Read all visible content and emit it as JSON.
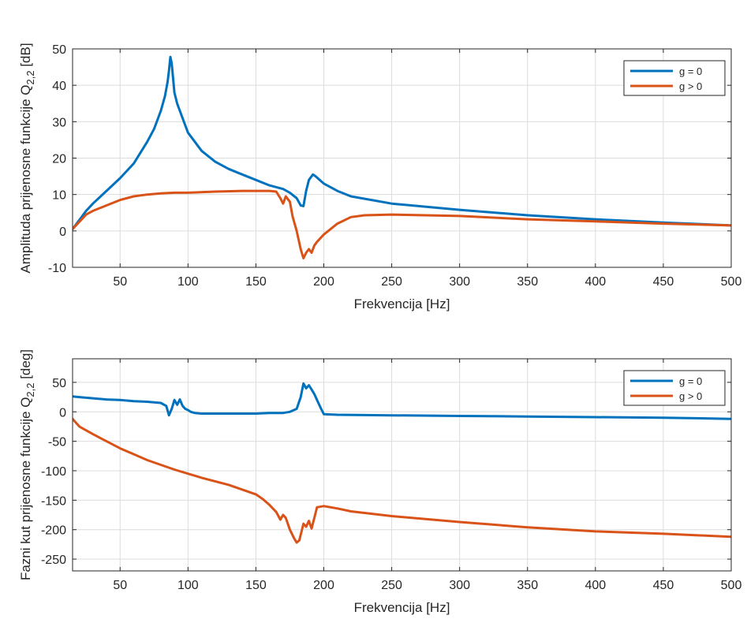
{
  "colors": {
    "g0": "#0072BD",
    "g1": "#D95319",
    "grid": "#dcdcdc",
    "axis": "#262626",
    "background": "#ffffff"
  },
  "chart_data": [
    {
      "type": "line",
      "title": "",
      "xlabel": "Frekvencija [Hz]",
      "ylabel": {
        "prefix": "Amplituda prijenosne funkcije Q",
        "sub": "2,2",
        "suffix": " [dB]"
      },
      "xlim": [
        15,
        500
      ],
      "ylim": [
        -10,
        50
      ],
      "xticks": [
        50,
        100,
        150,
        200,
        250,
        300,
        350,
        400,
        450,
        500
      ],
      "yticks": [
        -10,
        0,
        10,
        20,
        30,
        40,
        50
      ],
      "grid": true,
      "legend": {
        "position": "top-right",
        "entries": [
          "g = 0",
          "g > 0"
        ]
      },
      "series": [
        {
          "name": "g = 0",
          "color_key": "g0",
          "x": [
            15,
            20,
            25,
            30,
            40,
            50,
            60,
            65,
            70,
            75,
            80,
            83,
            85,
            86,
            87,
            88,
            89,
            90,
            92,
            95,
            100,
            110,
            120,
            130,
            140,
            150,
            160,
            170,
            175,
            180,
            183,
            185,
            187,
            189,
            190,
            192,
            194,
            197,
            200,
            210,
            220,
            250,
            300,
            350,
            400,
            450,
            500
          ],
          "y": [
            0.5,
            3,
            5.5,
            7.5,
            11,
            14.5,
            18.5,
            21.5,
            24.5,
            28,
            33,
            37,
            41,
            44,
            47.8,
            46,
            42,
            38,
            35,
            32,
            27,
            22,
            19,
            17,
            15.5,
            14,
            12.5,
            11.5,
            10.5,
            9,
            7,
            6.8,
            11,
            14,
            14.5,
            15.5,
            15,
            14,
            13,
            11,
            9.5,
            7.5,
            5.8,
            4.3,
            3.2,
            2.3,
            1.5
          ]
        },
        {
          "name": "g > 0",
          "color_key": "g1",
          "x": [
            15,
            20,
            25,
            30,
            40,
            50,
            60,
            70,
            80,
            90,
            100,
            120,
            140,
            150,
            160,
            165,
            168,
            170,
            172,
            175,
            177,
            180,
            183,
            185,
            187,
            189,
            191,
            193,
            195,
            200,
            210,
            220,
            230,
            250,
            300,
            350,
            400,
            450,
            500
          ],
          "y": [
            0.5,
            2.5,
            4.5,
            5.5,
            7,
            8.5,
            9.5,
            10,
            10.3,
            10.5,
            10.5,
            10.8,
            11,
            11,
            11,
            10.8,
            9,
            7.5,
            9.5,
            8,
            4,
            0,
            -5,
            -7.5,
            -6,
            -5,
            -6,
            -4,
            -3,
            -1,
            2,
            3.8,
            4.3,
            4.5,
            4.1,
            3.2,
            2.6,
            2,
            1.5
          ]
        }
      ]
    },
    {
      "type": "line",
      "title": "",
      "xlabel": "Frekvencija [Hz]",
      "ylabel": {
        "prefix": "Fazni kut prijenosne funkcije Q",
        "sub": "2,2",
        "suffix": " [deg]"
      },
      "xlim": [
        15,
        500
      ],
      "ylim": [
        -270,
        90
      ],
      "xticks": [
        50,
        100,
        150,
        200,
        250,
        300,
        350,
        400,
        450,
        500
      ],
      "yticks": [
        -250,
        -200,
        -150,
        -100,
        -50,
        0,
        50
      ],
      "grid": true,
      "legend": {
        "position": "top-right",
        "entries": [
          "g = 0",
          "g > 0"
        ]
      },
      "series": [
        {
          "name": "g = 0",
          "color_key": "g0",
          "x": [
            15,
            20,
            30,
            40,
            50,
            60,
            70,
            80,
            84,
            86,
            88,
            90,
            92,
            94,
            96,
            98,
            100,
            102,
            105,
            110,
            120,
            130,
            140,
            150,
            160,
            170,
            175,
            180,
            183,
            185,
            187,
            189,
            191,
            193,
            195,
            198,
            200,
            210,
            250,
            300,
            350,
            400,
            450,
            500
          ],
          "y": [
            26,
            25,
            23,
            21,
            20,
            18,
            17,
            15,
            10,
            -6,
            5,
            20,
            12,
            21,
            10,
            5,
            3,
            0,
            -2,
            -3,
            -3,
            -3,
            -3,
            -3,
            -2,
            -2,
            0,
            5,
            25,
            48,
            40,
            45,
            38,
            30,
            20,
            5,
            -4,
            -5,
            -6,
            -7,
            -8,
            -9,
            -10,
            -12
          ]
        },
        {
          "name": "g > 0",
          "color_key": "g1",
          "x": [
            15,
            20,
            30,
            40,
            50,
            60,
            70,
            80,
            90,
            100,
            110,
            120,
            130,
            140,
            150,
            155,
            160,
            165,
            168,
            170,
            172,
            175,
            178,
            180,
            182,
            185,
            187,
            189,
            191,
            193,
            195,
            200,
            210,
            220,
            250,
            300,
            350,
            400,
            450,
            500
          ],
          "y": [
            -12,
            -25,
            -38,
            -50,
            -62,
            -72,
            -82,
            -90,
            -98,
            -105,
            -112,
            -118,
            -124,
            -132,
            -140,
            -148,
            -158,
            -170,
            -183,
            -175,
            -180,
            -200,
            -214,
            -222,
            -218,
            -190,
            -195,
            -185,
            -198,
            -180,
            -162,
            -160,
            -164,
            -169,
            -177,
            -187,
            -196,
            -203,
            -207,
            -212
          ]
        }
      ]
    }
  ]
}
